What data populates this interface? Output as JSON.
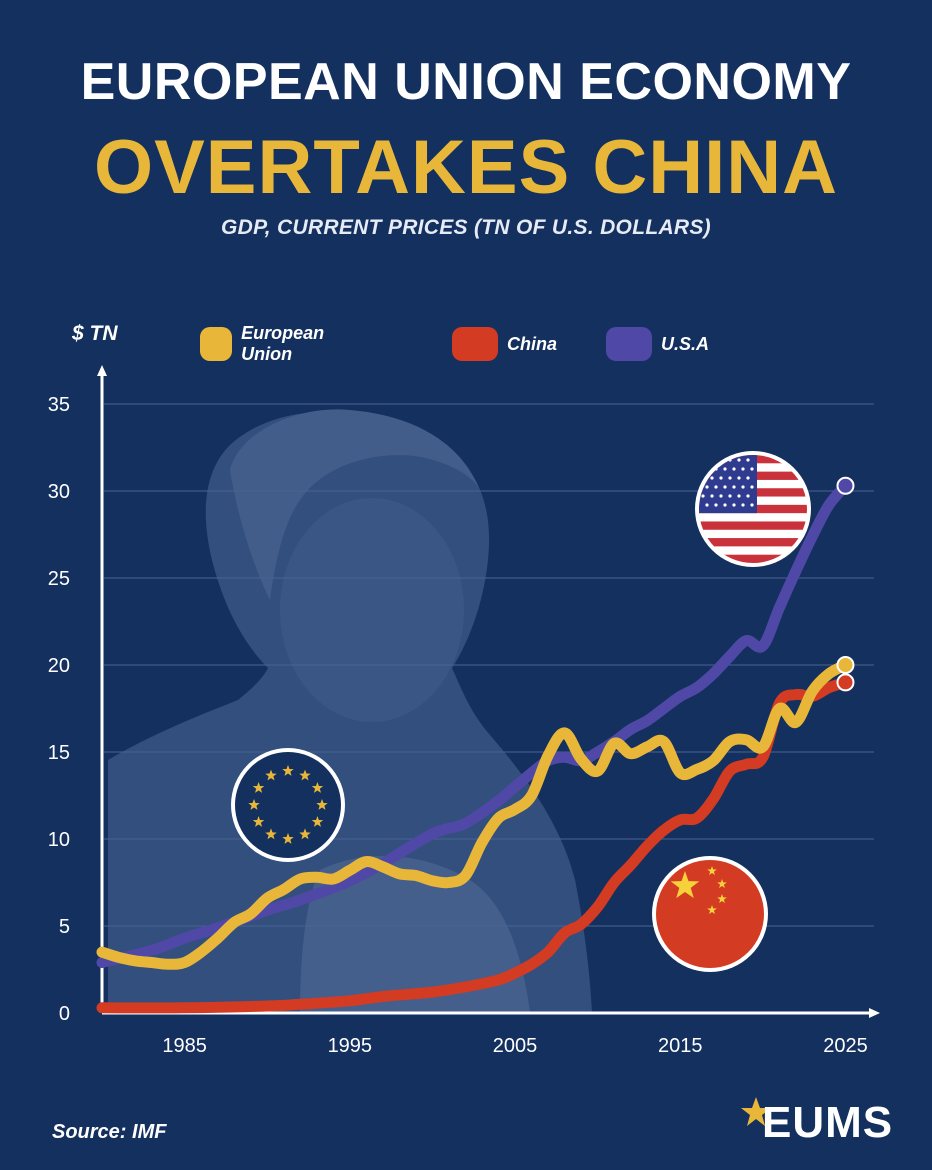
{
  "header": {
    "title_line1": "EUROPEAN UNION ECONOMY",
    "title_line2": "OVERTAKES CHINA",
    "subtitle": "GDP, CURRENT PRICES (TN OF U.S. DOLLARS)"
  },
  "y_unit_label": "$ TN",
  "footer": {
    "source": "Source: IMF",
    "brand": "EUMS"
  },
  "colors": {
    "background": "#13305e",
    "eu": "#e8b73a",
    "china": "#d33b22",
    "usa": "#5048a6",
    "grid": "#4b6392"
  },
  "chart_data": {
    "type": "line",
    "title": "GDP, CURRENT PRICES (TN OF U.S. DOLLARS)",
    "ylabel": "$ TN",
    "xlabel": "",
    "xlim": [
      1980,
      2026
    ],
    "ylim": [
      0,
      35
    ],
    "x_ticks": [
      1985,
      1995,
      2005,
      2015,
      2025
    ],
    "y_ticks": [
      0,
      5,
      10,
      15,
      20,
      25,
      30,
      35
    ],
    "grid": true,
    "legend_position": "top",
    "series": [
      {
        "name": "European Union",
        "color": "#e8b73a",
        "x": [
          1980,
          1981,
          1982,
          1983,
          1984,
          1985,
          1986,
          1987,
          1988,
          1989,
          1990,
          1991,
          1992,
          1993,
          1994,
          1995,
          1996,
          1997,
          1998,
          1999,
          2000,
          2001,
          2002,
          2003,
          2004,
          2005,
          2006,
          2007,
          2008,
          2009,
          2010,
          2011,
          2012,
          2013,
          2014,
          2015,
          2016,
          2017,
          2018,
          2019,
          2020,
          2021,
          2022,
          2023,
          2024,
          2025
        ],
        "values": [
          3.5,
          3.2,
          3.0,
          2.9,
          2.8,
          2.9,
          3.5,
          4.3,
          5.2,
          5.7,
          6.6,
          7.1,
          7.7,
          7.8,
          7.7,
          8.2,
          8.7,
          8.4,
          8.0,
          7.9,
          7.6,
          7.5,
          7.9,
          9.8,
          11.2,
          11.7,
          12.5,
          14.8,
          16.1,
          14.6,
          13.9,
          15.5,
          14.9,
          15.3,
          15.6,
          13.8,
          14.0,
          14.5,
          15.6,
          15.7,
          15.3,
          17.5,
          16.7,
          18.5,
          19.5,
          20.0
        ]
      },
      {
        "name": "China",
        "color": "#d33b22",
        "x": [
          1980,
          1985,
          1990,
          1992,
          1995,
          1997,
          2000,
          2002,
          2004,
          2005,
          2006,
          2007,
          2008,
          2009,
          2010,
          2011,
          2012,
          2013,
          2014,
          2015,
          2016,
          2017,
          2018,
          2019,
          2020,
          2021,
          2022,
          2023,
          2024,
          2025
        ],
        "values": [
          0.3,
          0.3,
          0.4,
          0.5,
          0.7,
          0.95,
          1.2,
          1.5,
          1.9,
          2.3,
          2.8,
          3.5,
          4.6,
          5.1,
          6.1,
          7.5,
          8.5,
          9.6,
          10.5,
          11.1,
          11.2,
          12.3,
          13.9,
          14.3,
          14.7,
          17.8,
          18.3,
          18.2,
          18.7,
          19.0
        ]
      },
      {
        "name": "U.S.A",
        "color": "#5048a6",
        "x": [
          1980,
          1983,
          1985,
          1987,
          1990,
          1992,
          1995,
          1997,
          2000,
          2002,
          2004,
          2005,
          2006,
          2007,
          2008,
          2009,
          2010,
          2011,
          2012,
          2013,
          2014,
          2015,
          2016,
          2017,
          2018,
          2019,
          2020,
          2021,
          2022,
          2023,
          2024,
          2025
        ],
        "values": [
          2.9,
          3.6,
          4.3,
          4.9,
          5.9,
          6.5,
          7.6,
          8.6,
          10.3,
          10.9,
          12.2,
          13.0,
          13.8,
          14.5,
          14.7,
          14.5,
          15.0,
          15.6,
          16.3,
          16.8,
          17.5,
          18.2,
          18.7,
          19.5,
          20.5,
          21.4,
          21.1,
          23.3,
          25.4,
          27.4,
          29.2,
          30.3
        ]
      }
    ]
  }
}
